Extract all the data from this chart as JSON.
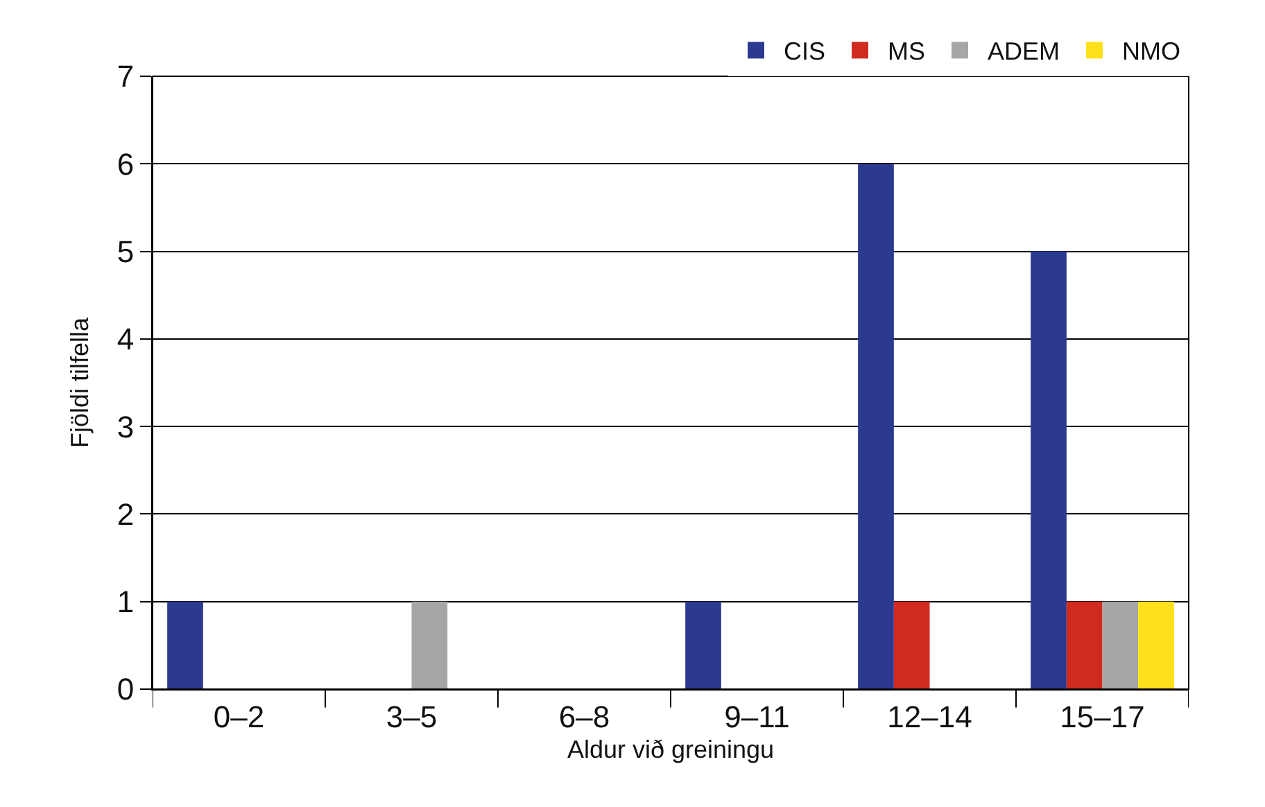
{
  "chart_data": {
    "type": "bar",
    "xlabel": "Aldur við greiningu",
    "ylabel": "Fjöldi tilfella",
    "categories": [
      "0–2",
      "3–5",
      "6–8",
      "9–11",
      "12–14",
      "15–17"
    ],
    "series": [
      {
        "name": "CIS",
        "color": "#2b3990",
        "values": [
          1,
          0,
          0,
          1,
          6,
          5
        ]
      },
      {
        "name": "MS",
        "color": "#d12a1f",
        "values": [
          0,
          0,
          0,
          0,
          1,
          1
        ]
      },
      {
        "name": "ADEM",
        "color": "#a6a6a6",
        "values": [
          0,
          1,
          0,
          0,
          0,
          1
        ]
      },
      {
        "name": "NMO",
        "color": "#ffe01a",
        "values": [
          0,
          0,
          0,
          0,
          0,
          1
        ]
      }
    ],
    "ylim": [
      0,
      7
    ],
    "yticks": [
      0,
      1,
      2,
      3,
      4,
      5,
      6,
      7
    ],
    "grid": "y",
    "legend": "top right"
  }
}
